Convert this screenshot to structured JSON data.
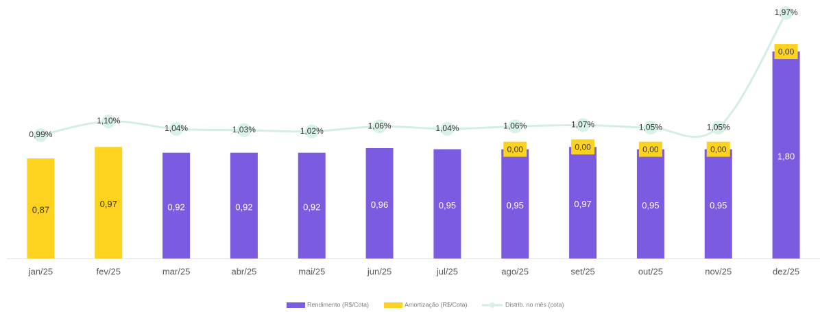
{
  "chart_data": {
    "type": "bar",
    "stacked": true,
    "categories": [
      "jan/25",
      "fev/25",
      "mar/25",
      "abr/25",
      "mai/25",
      "jun/25",
      "jul/25",
      "ago/25",
      "set/25",
      "out/25",
      "nov/25",
      "dez/25"
    ],
    "series": [
      {
        "name": "Rendimento (R$/Cota)",
        "color": "#7b5ce0",
        "values": [
          null,
          null,
          0.92,
          0.92,
          0.92,
          0.96,
          0.95,
          0.95,
          0.97,
          0.95,
          0.95,
          1.8
        ],
        "value_labels": [
          null,
          null,
          "0,92",
          "0,92",
          "0,92",
          "0,96",
          "0,95",
          "0,95",
          "0,97",
          "0,95",
          "0,95",
          "1,80"
        ]
      },
      {
        "name": "Amortização (R$/Cota)",
        "color": "#fdd31f",
        "values": [
          0.87,
          0.97,
          null,
          null,
          null,
          null,
          null,
          0,
          0,
          0,
          0,
          0
        ],
        "value_labels": [
          "0,87",
          "0,97",
          null,
          null,
          null,
          null,
          null,
          "0,00",
          "0,00",
          "0,00",
          "0,00",
          "0,00"
        ]
      },
      {
        "name": "Distrib. no mês (cota)",
        "type": "line",
        "axis": "y2",
        "color": "#d3efe5",
        "values": [
          0.99,
          1.1,
          1.04,
          1.03,
          1.02,
          1.06,
          1.04,
          1.06,
          1.07,
          1.05,
          1.05,
          1.97
        ],
        "value_labels": [
          "0,99%",
          "1,10%",
          "1,04%",
          "1,03%",
          "1,02%",
          "1,06%",
          "1,04%",
          "1,06%",
          "1,07%",
          "1,05%",
          "1,05%",
          "1,97%"
        ]
      }
    ],
    "ylim": [
      0,
      2.2
    ],
    "y2lim": [
      0,
      2.03
    ]
  }
}
